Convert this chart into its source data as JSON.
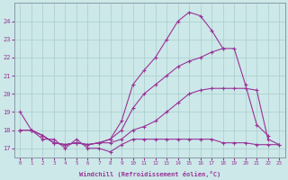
{
  "xlabel": "Windchill (Refroidissement éolien,°C)",
  "background_color": "#cce8e8",
  "grid_color": "#aaccaa",
  "line_color": "#993399",
  "x": [
    0,
    1,
    2,
    3,
    4,
    5,
    6,
    7,
    8,
    9,
    10,
    11,
    12,
    13,
    14,
    15,
    16,
    17,
    18,
    19,
    20,
    21,
    22,
    23
  ],
  "series1": [
    19.0,
    18.0,
    17.5,
    17.5,
    17.0,
    17.5,
    17.0,
    17.0,
    16.8,
    17.2,
    17.5,
    17.5,
    17.5,
    17.5,
    17.5,
    17.5,
    17.5,
    17.5,
    17.3,
    17.3,
    17.3,
    17.2,
    17.2,
    17.2
  ],
  "series2": [
    18.0,
    18.0,
    17.7,
    17.3,
    17.2,
    17.3,
    17.2,
    17.3,
    17.3,
    17.5,
    18.0,
    18.2,
    18.5,
    19.0,
    19.5,
    20.0,
    20.2,
    20.3,
    20.3,
    20.3,
    20.3,
    20.2,
    17.5,
    17.2
  ],
  "series3": [
    18.0,
    18.0,
    17.7,
    17.3,
    17.2,
    17.3,
    17.2,
    17.3,
    17.5,
    18.0,
    19.2,
    20.0,
    20.5,
    21.0,
    21.5,
    21.8,
    22.0,
    22.3,
    22.5,
    22.5,
    20.5,
    18.3,
    17.7,
    null
  ],
  "series4": [
    18.0,
    18.0,
    17.7,
    17.3,
    17.2,
    17.3,
    17.2,
    17.3,
    17.5,
    18.5,
    20.5,
    21.3,
    22.0,
    23.0,
    24.0,
    24.5,
    24.3,
    23.5,
    22.5,
    null,
    null,
    null,
    null,
    null
  ],
  "ylim": [
    16.5,
    25.0
  ],
  "xlim": [
    -0.5,
    23.5
  ],
  "yticks": [
    17,
    18,
    19,
    20,
    21,
    22,
    23,
    24
  ]
}
